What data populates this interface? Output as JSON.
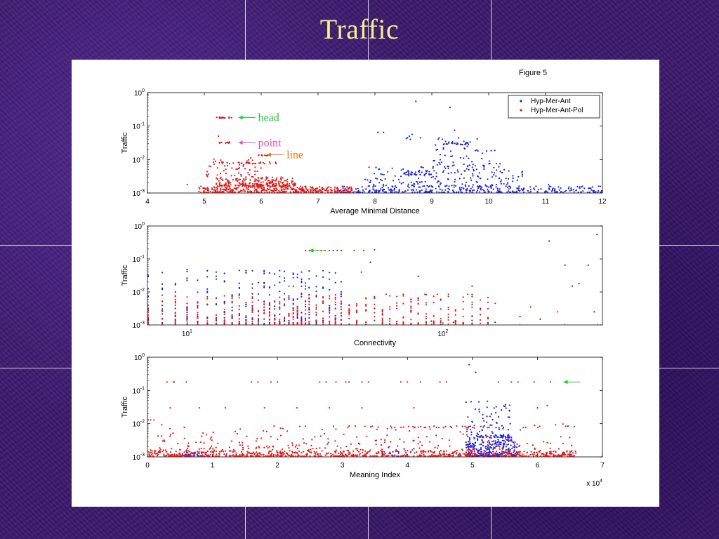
{
  "slide": {
    "title": "Traffic"
  },
  "figure": {
    "label": "Figure 5"
  },
  "colors": {
    "series_blue": "#1a22d8",
    "series_red": "#e01616",
    "arrow_green": "#22cc33",
    "arrow_pink": "#e0559f",
    "arrow_orange": "#e97a16",
    "title": "#f4f08a"
  },
  "chart_data": [
    {
      "type": "scatter",
      "title": "",
      "xlabel": "Average Minimal Distance",
      "ylabel": "Traffic",
      "xscale": "linear",
      "yscale": "log",
      "xlim": [
        4,
        12
      ],
      "ylim": [
        0.001,
        1
      ],
      "xticks": [
        "4",
        "5",
        "6",
        "7",
        "8",
        "9",
        "10",
        "11",
        "12"
      ],
      "yticks": [
        "10^-3",
        "10^-2",
        "10^-1",
        "10^0"
      ],
      "legend": {
        "position": "top-right",
        "entries": [
          "Hyp-Mer-Ant",
          "Hyp-Mer-Ant-Pol"
        ]
      },
      "annotations": [
        {
          "text": "head",
          "x": 5.6,
          "y": 0.18,
          "color": "#22cc33"
        },
        {
          "text": "point",
          "x": 5.6,
          "y": 0.032,
          "color": "#e0559f"
        },
        {
          "text": "line",
          "x": 6.1,
          "y": 0.014,
          "color": "#e97a16"
        }
      ],
      "series": [
        {
          "name": "Hyp-Mer-Ant",
          "color": "#1a22d8",
          "clusters": [
            {
              "x_range": [
                7.3,
                12.0
              ],
              "y_range": [
                0.001,
                0.0016
              ],
              "n": 340
            },
            {
              "x_range": [
                7.8,
                10.6
              ],
              "y_range": [
                0.0016,
                0.006
              ],
              "n": 170
            },
            {
              "x_range": [
                8.5,
                9.0
              ],
              "y_range": [
                0.0035,
                0.0048
              ],
              "n": 35
            },
            {
              "x_range": [
                9.0,
                10.2
              ],
              "y_range": [
                0.006,
                0.03
              ],
              "n": 55
            },
            {
              "x_range": [
                9.2,
                9.7
              ],
              "y_range": [
                0.028,
                0.036
              ],
              "n": 28
            },
            {
              "x_range": [
                8.4,
                9.8
              ],
              "y_range": [
                0.04,
                0.06
              ],
              "n": 10
            }
          ],
          "points": [
            [
              8.72,
              0.55
            ],
            [
              9.32,
              0.36
            ],
            [
              8.05,
              0.065
            ],
            [
              8.15,
              0.065
            ],
            [
              8.8,
              0.045
            ],
            [
              9.1,
              0.02
            ],
            [
              10.1,
              0.004
            ],
            [
              11.05,
              0.0018
            ],
            [
              9.4,
              0.075
            ]
          ]
        },
        {
          "name": "Hyp-Mer-Ant-Pol",
          "color": "#e01616",
          "clusters": [
            {
              "x_range": [
                4.9,
                7.6
              ],
              "y_range": [
                0.001,
                0.0016
              ],
              "n": 380
            },
            {
              "x_range": [
                5.2,
                6.6
              ],
              "y_range": [
                0.0016,
                0.003
              ],
              "n": 220
            },
            {
              "x_range": [
                5.0,
                6.0
              ],
              "y_range": [
                0.003,
                0.012
              ],
              "n": 50
            },
            {
              "x_range": [
                5.2,
                5.5
              ],
              "y_range": [
                0.175,
                0.185
              ],
              "n": 18
            },
            {
              "x_range": [
                5.2,
                5.45
              ],
              "y_range": [
                0.031,
                0.034
              ],
              "n": 12
            },
            {
              "x_range": [
                5.15,
                6.3
              ],
              "y_range": [
                0.0075,
                0.0085
              ],
              "n": 28
            },
            {
              "x_range": [
                5.95,
                6.15
              ],
              "y_range": [
                0.013,
                0.014
              ],
              "n": 8
            }
          ],
          "points": [
            [
              4.7,
              0.0018
            ],
            [
              5.25,
              0.05
            ],
            [
              6.6,
              0.0012
            ],
            [
              7.0,
              0.0011
            ],
            [
              7.4,
              0.0012
            ]
          ]
        }
      ]
    },
    {
      "type": "scatter",
      "title": "",
      "xlabel": "Connectivity",
      "ylabel": "Traffic",
      "xscale": "log",
      "yscale": "log",
      "xlim": [
        7,
        420
      ],
      "ylim": [
        0.001,
        1
      ],
      "xticks": [
        "10^1",
        "10^2"
      ],
      "yticks": [
        "10^-3",
        "10^-2",
        "10^-1",
        "10^0"
      ],
      "annotations": [
        {
          "text": "",
          "x": 30,
          "y": 0.18,
          "color": "#22cc33"
        }
      ],
      "series": [
        {
          "name": "Hyp-Mer-Ant",
          "color": "#1a22d8",
          "column_x": [
            7,
            8,
            9,
            10,
            11,
            12,
            13,
            14,
            15,
            16,
            17,
            18,
            19,
            20,
            21,
            22,
            23,
            24,
            25,
            26,
            27,
            28,
            29,
            30,
            32,
            34,
            36,
            38,
            40
          ],
          "column_y_max": 0.045,
          "points": [
            [
              10,
              0.048
            ],
            [
              13,
              0.04
            ],
            [
              16,
              0.045
            ],
            [
              22,
              0.035
            ],
            [
              28,
              0.04
            ],
            [
              52,
              0.08
            ],
            [
              48,
              0.04
            ],
            [
              80,
              0.03
            ],
            [
              130,
              0.015
            ],
            [
              260,
              0.35
            ],
            [
              340,
              0.018
            ],
            [
              320,
              0.015
            ],
            [
              400,
              0.55
            ],
            [
              370,
              0.065
            ],
            [
              390,
              0.0025
            ],
            [
              300,
              0.065
            ],
            [
              200,
              0.0018
            ],
            [
              160,
              0.0012
            ],
            [
              240,
              0.0015
            ],
            [
              110,
              0.0012
            ],
            [
              90,
              0.0013
            ]
          ]
        },
        {
          "name": "Hyp-Mer-Ant-Pol",
          "color": "#e01616",
          "column_x": [
            7,
            8,
            9,
            10,
            11,
            12,
            13,
            14,
            15,
            16,
            17,
            18,
            19,
            20,
            21,
            22,
            23,
            24,
            25,
            26,
            27,
            28,
            29,
            30,
            32,
            34,
            36,
            38,
            40,
            43,
            46,
            50,
            54,
            58,
            62,
            66,
            70,
            75,
            80,
            86,
            92,
            98,
            105,
            112,
            120,
            130,
            140,
            150
          ],
          "column_y_max": 0.0085,
          "head_row": {
            "x_range": [
              29,
              40
            ],
            "y": 0.18,
            "n": 10
          },
          "points": [
            [
              45,
              0.18
            ],
            [
              49,
              0.18
            ],
            [
              54,
              0.19
            ],
            [
              20,
              0.018
            ],
            [
              25,
              0.015
            ],
            [
              60,
              0.0085
            ],
            [
              70,
              0.0085
            ],
            [
              85,
              0.0085
            ],
            [
              95,
              0.0085
            ],
            [
              125,
              0.0085
            ],
            [
              160,
              0.0045
            ],
            [
              220,
              0.0035
            ],
            [
              280,
              0.0025
            ]
          ]
        }
      ]
    },
    {
      "type": "scatter",
      "title": "",
      "xlabel": "Meaning Index",
      "ylabel": "Traffic",
      "xscale": "linear",
      "yscale": "log",
      "xlim": [
        0,
        70000
      ],
      "ylim": [
        0.001,
        1
      ],
      "x_multiplier": "x 10^4",
      "xticks": [
        "0",
        "1",
        "2",
        "3",
        "4",
        "5",
        "6",
        "7"
      ],
      "yticks": [
        "10^-3",
        "10^-2",
        "10^-1",
        "10^0"
      ],
      "annotations": [
        {
          "text": "",
          "x": 64000,
          "y": 0.18,
          "color": "#22cc33"
        }
      ],
      "series": [
        {
          "name": "Hyp-Mer-Ant",
          "color": "#1a22d8",
          "clusters": [
            {
              "x_range": [
                49000,
                57000
              ],
              "y_range": [
                0.001,
                0.003
              ],
              "n": 260
            },
            {
              "x_range": [
                49000,
                56000
              ],
              "y_range": [
                0.003,
                0.05
              ],
              "n": 90
            },
            {
              "x_range": [
                50500,
                56000
              ],
              "y_range": [
                0.0038,
                0.0044
              ],
              "n": 40
            },
            {
              "x_range": [
                5000,
                9000
              ],
              "y_range": [
                0.001,
                0.0014
              ],
              "n": 30
            },
            {
              "x_range": [
                36000,
                41000
              ],
              "y_range": [
                0.001,
                0.002
              ],
              "n": 15
            }
          ],
          "points": [
            [
              49500,
              0.6
            ],
            [
              50500,
              0.35
            ],
            [
              51000,
              0.045
            ],
            [
              55000,
              0.033
            ],
            [
              54800,
              0.034
            ]
          ]
        },
        {
          "name": "Hyp-Mer-Ant-Pol",
          "color": "#e01616",
          "clusters": [
            {
              "x_range": [
                0,
                66000
              ],
              "y_range": [
                0.001,
                0.0015
              ],
              "n": 750
            },
            {
              "x_range": [
                0,
                66000
              ],
              "y_range": [
                0.0015,
                0.003
              ],
              "n": 170
            },
            {
              "x_range": [
                0,
                66000
              ],
              "y_range": [
                0.003,
                0.01
              ],
              "n": 90
            },
            {
              "x_range": [
                30000,
                66000
              ],
              "y_range": [
                0.0075,
                0.0085
              ],
              "n": 40
            }
          ],
          "points": [
            [
              3000,
              0.18
            ],
            [
              4000,
              0.18
            ],
            [
              4100,
              0.18
            ],
            [
              6000,
              0.18
            ],
            [
              16000,
              0.18
            ],
            [
              17000,
              0.18
            ],
            [
              19000,
              0.18
            ],
            [
              20000,
              0.18
            ],
            [
              26500,
              0.18
            ],
            [
              27500,
              0.18
            ],
            [
              29000,
              0.18
            ],
            [
              30500,
              0.18
            ],
            [
              31000,
              0.18
            ],
            [
              33000,
              0.18
            ],
            [
              34000,
              0.18
            ],
            [
              39000,
              0.18
            ],
            [
              40000,
              0.18
            ],
            [
              42000,
              0.18
            ],
            [
              45000,
              0.18
            ],
            [
              46000,
              0.18
            ],
            [
              54000,
              0.18
            ],
            [
              56000,
              0.18
            ],
            [
              57000,
              0.18
            ],
            [
              59500,
              0.18
            ],
            [
              62000,
              0.18
            ],
            [
              0,
              0.013
            ],
            [
              500,
              0.013
            ],
            [
              1000,
              0.013
            ],
            [
              3500,
              0.03
            ],
            [
              8000,
              0.03
            ],
            [
              12000,
              0.03
            ],
            [
              18000,
              0.03
            ],
            [
              23000,
              0.03
            ],
            [
              28000,
              0.03
            ],
            [
              33000,
              0.03
            ],
            [
              41000,
              0.03
            ],
            [
              60000,
              0.03
            ],
            [
              61500,
              0.035
            ]
          ]
        }
      ]
    }
  ]
}
